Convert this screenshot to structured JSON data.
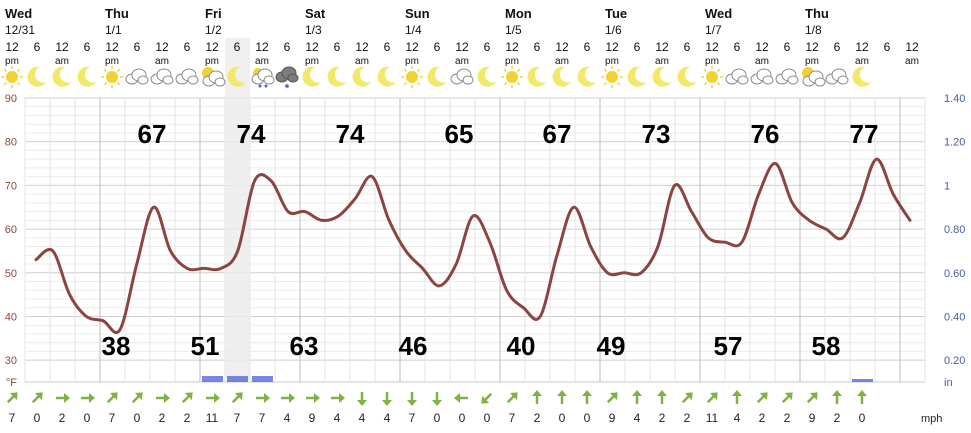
{
  "chart_data": {
    "type": "line",
    "title": "",
    "days": [
      {
        "name": "Wed",
        "date": "12/31"
      },
      {
        "name": "Thu",
        "date": "1/1"
      },
      {
        "name": "Fri",
        "date": "1/2"
      },
      {
        "name": "Sat",
        "date": "1/3"
      },
      {
        "name": "Sun",
        "date": "1/4"
      },
      {
        "name": "Mon",
        "date": "1/5"
      },
      {
        "name": "Tue",
        "date": "1/6"
      },
      {
        "name": "Wed",
        "date": "1/7"
      },
      {
        "name": "Thu",
        "date": "1/8"
      }
    ],
    "hour_labels": [
      "12 pm",
      "6",
      "12 am",
      "6",
      "12 pm",
      "6",
      "12 am",
      "6",
      "12 pm",
      "6",
      "12 am",
      "6",
      "12 pm",
      "6",
      "12 am",
      "6",
      "12 pm",
      "6",
      "12 am",
      "6",
      "12 pm",
      "6",
      "12 am",
      "6",
      "12 pm",
      "6",
      "12 am",
      "6",
      "12 pm",
      "6",
      "12 am",
      "6",
      "12 pm",
      "6",
      "12 am",
      "6",
      "12 am"
    ],
    "weather_icons": [
      "sun",
      "moon",
      "moon",
      "moon",
      "sun",
      "cloudy",
      "cloudy",
      "cloudy",
      "partly-cloudy",
      "moon",
      "rain-cloud",
      "rain-storm",
      "moon",
      "moon",
      "moon",
      "moon",
      "sun",
      "moon",
      "cloudy",
      "moon",
      "sun",
      "moon",
      "moon",
      "moon",
      "sun",
      "moon",
      "moon",
      "moon",
      "sun",
      "cloudy",
      "cloudy",
      "cloudy",
      "partly-cloudy",
      "cloudy",
      "moon"
    ],
    "temperature_series": {
      "name": "Temperature",
      "unit": "°F",
      "values": [
        53,
        55,
        45,
        40,
        39,
        37,
        52,
        65,
        55,
        51,
        51,
        51,
        55,
        71,
        71,
        64,
        64,
        62,
        63,
        67,
        72,
        62,
        55,
        51,
        47,
        52,
        63,
        57,
        46,
        42,
        40,
        54,
        65,
        56,
        50,
        50,
        50,
        56,
        70,
        64,
        58,
        57,
        57,
        68,
        75,
        66,
        62,
        60,
        58,
        66,
        76,
        68,
        62
      ]
    },
    "highs": [
      "67",
      "74",
      "74",
      "65",
      "67",
      "73",
      "76",
      "77"
    ],
    "lows": [
      "38",
      "51",
      "63",
      "46",
      "40",
      "49",
      "57",
      "58"
    ],
    "y_left": {
      "label": "°F",
      "ticks": [
        "90",
        "80",
        "70",
        "60",
        "50",
        "40",
        "30"
      ],
      "range": [
        25,
        90
      ]
    },
    "y_right": {
      "label": "in",
      "ticks": [
        "1.40",
        "1.20",
        "1",
        "0.80",
        "0.60",
        "0.40",
        "0.20"
      ]
    },
    "precip_bars": [
      {
        "period": 7,
        "amount": "0.02"
      },
      {
        "period": 8,
        "amount": "0.02"
      },
      {
        "period": 9,
        "amount": "0.02"
      },
      {
        "period": 33,
        "amount": "0.01"
      }
    ],
    "wind": {
      "unit": "mph",
      "speeds": [
        "7",
        "0",
        "2",
        "0",
        "7",
        "0",
        "2",
        "2",
        "11",
        "7",
        "7",
        "4",
        "9",
        "4",
        "4",
        "4",
        "7",
        "0",
        "0",
        "0",
        "7",
        "2",
        "0",
        "0",
        "9",
        "4",
        "2",
        "2",
        "11",
        "4",
        "2",
        "2",
        "9",
        "2",
        "0"
      ],
      "directions_deg": [
        45,
        45,
        90,
        90,
        45,
        45,
        90,
        45,
        90,
        45,
        90,
        90,
        90,
        90,
        180,
        180,
        180,
        180,
        270,
        225,
        45,
        0,
        0,
        0,
        45,
        0,
        0,
        45,
        45,
        0,
        45,
        45,
        45,
        0,
        0
      ]
    },
    "grid": true,
    "shaded_period": 8,
    "colors": {
      "line": "#8b4540",
      "left_axis": "#8a4a3a",
      "right_axis": "#4a5aa8",
      "wind_arrow": "#7cb342",
      "sun": "#f2d230",
      "moon": "#f2e86a",
      "cloud": "#9c9c9c",
      "precip": "#4a5ee0"
    }
  }
}
